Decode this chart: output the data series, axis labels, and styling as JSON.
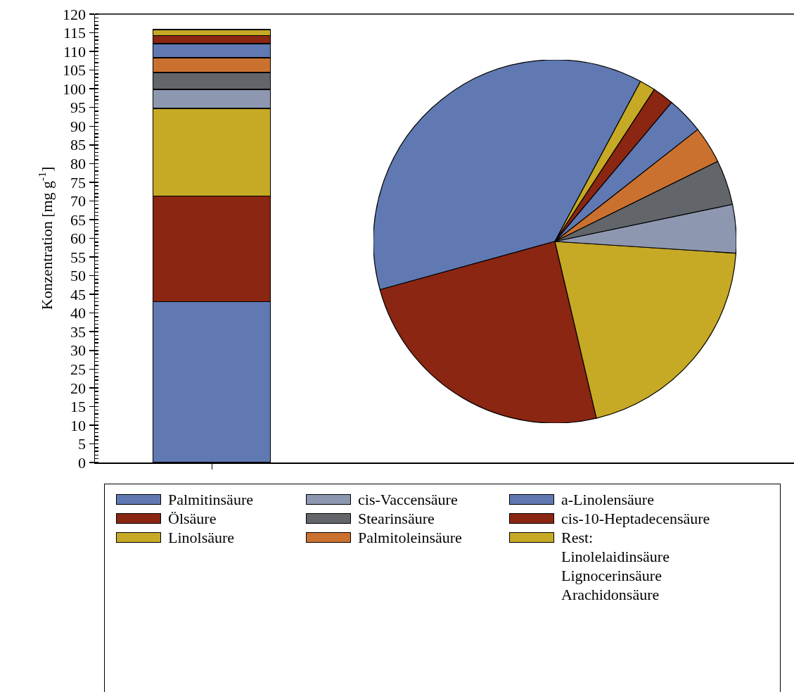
{
  "chart_data": [
    {
      "type": "bar",
      "ylabel": "Konzentration [mg g$^{-1}$]",
      "categories": [
        null
      ],
      "stacked": true,
      "ylim": [
        0,
        120
      ],
      "yticks": [
        0,
        5,
        10,
        15,
        20,
        25,
        30,
        35,
        40,
        45,
        50,
        55,
        60,
        65,
        70,
        75,
        80,
        85,
        90,
        95,
        100,
        105,
        110,
        115,
        120
      ],
      "grid": false,
      "legend": "bottom",
      "series": [
        {
          "name": "Palmitinsäure",
          "color": "#6079b2",
          "values": [
            43
          ]
        },
        {
          "name": "Ölsäure",
          "color": "#8b2613",
          "values": [
            28.3
          ]
        },
        {
          "name": "Linolsäure",
          "color": "#c6a925",
          "values": [
            23.5
          ]
        },
        {
          "name": "cis-Vaccensäure",
          "color": "#8d97b0",
          "values": [
            5.0
          ]
        },
        {
          "name": "Stearinsäure",
          "color": "#62656a",
          "values": [
            4.6
          ]
        },
        {
          "name": "Palmitoleinsäure",
          "color": "#cb712f",
          "values": [
            3.9
          ]
        },
        {
          "name": "a-Linolensäure",
          "color": "#6079b2",
          "values": [
            3.8
          ]
        },
        {
          "name": "cis-10-Heptadecensäure",
          "color": "#8b2613",
          "values": [
            2.2
          ]
        },
        {
          "name": "Rest:\nLinolelaidinsäure\nLignocerinsäure\nArachidonsäure",
          "color": "#c6a925",
          "values": [
            1.6
          ]
        }
      ]
    },
    {
      "type": "pie",
      "legend": false,
      "categories": [
        null,
        null,
        null,
        null,
        null,
        null,
        null,
        null,
        null
      ],
      "values": [
        37.1,
        24.4,
        20.3,
        4.3,
        4.0,
        3.3,
        3.3,
        1.9,
        1.4
      ],
      "colors": [
        "#6079b2",
        "#8b2613",
        "#c6a925",
        "#8d97b0",
        "#62656a",
        "#cb712f",
        "#6079b2",
        "#8b2613",
        "#c6a925"
      ]
    }
  ]
}
